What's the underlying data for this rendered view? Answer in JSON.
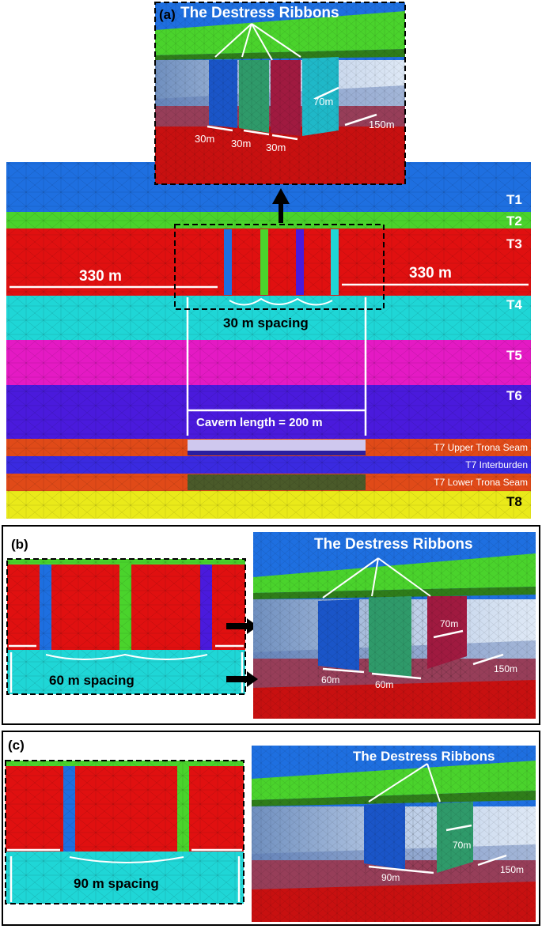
{
  "panel_a": {
    "tag": "(a)",
    "inset_title": "The Destress Ribbons",
    "inset_dims": [
      "30m",
      "30m",
      "30m",
      "70m",
      "150m"
    ],
    "layers": [
      "T1",
      "T2",
      "T3",
      "T4",
      "T5",
      "T6",
      "T7 Upper Trona Seam",
      "T7 Interburden",
      "T7 Lower Trona Seam",
      "T8"
    ],
    "dim_left": "330 m",
    "dim_right": "330 m",
    "spacing_label": "30 m spacing",
    "cavern_label": "Cavern length = 200 m"
  },
  "panel_b": {
    "tag": "(b)",
    "spacing_label": "60 m spacing",
    "inset_title": "The Destress Ribbons",
    "inset_dims": [
      "60m",
      "60m",
      "70m",
      "150m"
    ]
  },
  "panel_c": {
    "tag": "(c)",
    "spacing_label": "90 m spacing",
    "inset_title": "The Destress Ribbons",
    "inset_dims": [
      "90m",
      "70m",
      "150m"
    ]
  },
  "colors": {
    "t1": "#1e6fe0",
    "t2": "#4ad32c",
    "t3": "#e01010",
    "t4": "#1fd6d6",
    "t5": "#e41ac4",
    "t6": "#4a1adc",
    "t7_seam": "#e04a18",
    "t7_inter": "#3a2ae0",
    "t8": "#eaea1a"
  }
}
